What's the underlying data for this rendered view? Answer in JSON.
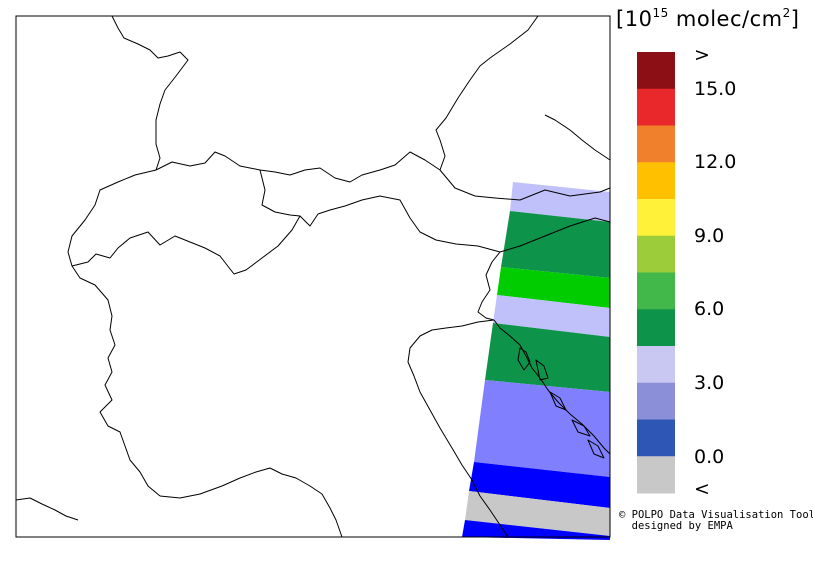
{
  "legend": {
    "unit_base": "10",
    "unit_exponent": "15",
    "unit_rest": " molec/cm",
    "unit_sq": "2",
    "tick_labels": [
      ">",
      "15.0",
      "12.0",
      "9.0",
      "6.0",
      "3.0",
      "0.0",
      "<"
    ],
    "bins": [
      {
        "label": "over",
        "color": "#8b0f14"
      },
      {
        "label": "13.5-15.0",
        "color": "#e8282a"
      },
      {
        "label": "12.0-13.5",
        "color": "#f0802c"
      },
      {
        "label": "10.5-12.0",
        "color": "#ffc000"
      },
      {
        "label": "9.0-10.5",
        "color": "#fff13a"
      },
      {
        "label": "7.5-9.0",
        "color": "#9dcc3b"
      },
      {
        "label": "6.0-7.5",
        "color": "#43b84a"
      },
      {
        "label": "4.5-6.0",
        "color": "#0e934a"
      },
      {
        "label": "3.0-4.5",
        "color": "#c8c8f2"
      },
      {
        "label": "1.5-3.0",
        "color": "#8a8fd8"
      },
      {
        "label": "0.0-1.5",
        "color": "#2e57b5"
      },
      {
        "label": "under",
        "color": "#c8c8c8"
      }
    ]
  },
  "swath": {
    "bands": [
      {
        "value_bin": "3.0-4.5",
        "color": "#c0c0fb"
      },
      {
        "value_bin": "4.5-6.0",
        "color": "#0e934a"
      },
      {
        "value_bin": "6.0-7.5",
        "color": "#00cc00"
      },
      {
        "value_bin": "3.0-4.5",
        "color": "#c0c0fb"
      },
      {
        "value_bin": "4.5-6.0",
        "color": "#0e934a"
      },
      {
        "value_bin": "1.5-3.0",
        "color": "#8080ff"
      },
      {
        "value_bin": "0.0-1.5",
        "color": "#0000ff"
      },
      {
        "value_bin": "under",
        "color": "#c8c8c8"
      },
      {
        "value_bin": "0.0-1.5",
        "color": "#0000ff"
      }
    ]
  },
  "credit": {
    "line1": "© POLPO Data Visualisation Tool",
    "line2": "  designed by EMPA"
  }
}
